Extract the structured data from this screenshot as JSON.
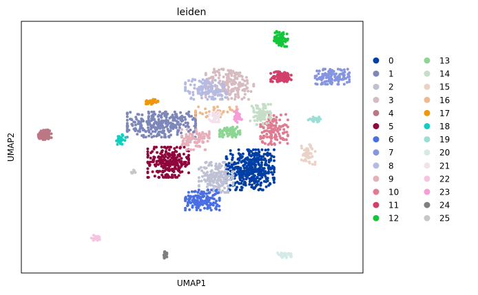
{
  "chart_data": {
    "type": "scatter",
    "title": "leiden",
    "xlabel": "UMAP1",
    "ylabel": "UMAP2",
    "grid": false,
    "ticks": false,
    "legend_placement": "right",
    "xlim": [
      0,
      100
    ],
    "ylim": [
      0,
      100
    ],
    "clusters": [
      {
        "name": "0",
        "color": "#023fa5",
        "center": [
          67,
          41
        ],
        "spread": [
          7,
          8
        ],
        "n": 420
      },
      {
        "name": "1",
        "color": "#7d87b9",
        "center": [
          41,
          59
        ],
        "spread": [
          10,
          5
        ],
        "n": 300
      },
      {
        "name": "2",
        "color": "#bec1d4",
        "center": [
          57,
          38
        ],
        "spread": [
          5,
          6
        ],
        "n": 180
      },
      {
        "name": "3",
        "color": "#d6bcc0",
        "center": [
          61,
          75
        ],
        "spread": [
          7,
          6
        ],
        "n": 200
      },
      {
        "name": "4",
        "color": "#bb7784",
        "center": [
          7,
          55
        ],
        "spread": [
          2,
          2
        ],
        "n": 70
      },
      {
        "name": "5",
        "color": "#8e063b",
        "center": [
          43,
          44
        ],
        "spread": [
          6,
          6
        ],
        "n": 260
      },
      {
        "name": "6",
        "color": "#4a6fe3",
        "center": [
          53,
          29
        ],
        "spread": [
          5,
          4
        ],
        "n": 160
      },
      {
        "name": "7",
        "color": "#8595e1",
        "center": [
          91,
          78
        ],
        "spread": [
          5,
          3
        ],
        "n": 120
      },
      {
        "name": "8",
        "color": "#b5bbe3",
        "center": [
          54,
          73
        ],
        "spread": [
          6,
          4
        ],
        "n": 130
      },
      {
        "name": "9",
        "color": "#e6afb9",
        "center": [
          51,
          53
        ],
        "spread": [
          4,
          4
        ],
        "n": 100
      },
      {
        "name": "10",
        "color": "#e07b91",
        "center": [
          74,
          57
        ],
        "spread": [
          4,
          6
        ],
        "n": 120
      },
      {
        "name": "11",
        "color": "#d33f6a",
        "center": [
          76,
          78
        ],
        "spread": [
          3,
          2
        ],
        "n": 100
      },
      {
        "name": "12",
        "color": "#11c638",
        "center": [
          76,
          93
        ],
        "spread": [
          2,
          3
        ],
        "n": 70
      },
      {
        "name": "13",
        "color": "#8dd593",
        "center": [
          61,
          56
        ],
        "spread": [
          3,
          2
        ],
        "n": 80
      },
      {
        "name": "14",
        "color": "#c6dec7",
        "center": [
          70,
          63
        ],
        "spread": [
          3,
          4
        ],
        "n": 80
      },
      {
        "name": "15",
        "color": "#ead3c6",
        "center": [
          84,
          47
        ],
        "spread": [
          2,
          4
        ],
        "n": 50
      },
      {
        "name": "16",
        "color": "#f0b98d",
        "center": [
          57,
          64
        ],
        "spread": [
          6,
          2
        ],
        "n": 40
      },
      {
        "name": "17",
        "color": "#ef9708",
        "center": [
          38,
          68
        ],
        "spread": [
          2,
          1
        ],
        "n": 35
      },
      {
        "name": "18",
        "color": "#0fcfc0",
        "center": [
          29,
          53
        ],
        "spread": [
          1.5,
          2
        ],
        "n": 30
      },
      {
        "name": "19",
        "color": "#9cded6",
        "center": [
          86,
          61
        ],
        "spread": [
          2,
          1
        ],
        "n": 25
      },
      {
        "name": "20",
        "color": "#d5eae7",
        "center": [
          77,
          7
        ],
        "spread": [
          2,
          1
        ],
        "n": 30
      },
      {
        "name": "21",
        "color": "#f3e1eb",
        "center": [
          57,
          62
        ],
        "spread": [
          2,
          2
        ],
        "n": 30
      },
      {
        "name": "22",
        "color": "#f6c4e1",
        "center": [
          22,
          14
        ],
        "spread": [
          1.5,
          1
        ],
        "n": 25
      },
      {
        "name": "23",
        "color": "#f79cd4",
        "center": [
          63,
          62
        ],
        "spread": [
          1.5,
          3
        ],
        "n": 30
      },
      {
        "name": "24",
        "color": "#7f7f7f",
        "center": [
          42,
          7
        ],
        "spread": [
          0.6,
          1.5
        ],
        "n": 20
      },
      {
        "name": "25",
        "color": "#c7c7c7",
        "center": [
          33,
          40
        ],
        "spread": [
          0.8,
          1
        ],
        "n": 8
      }
    ]
  }
}
